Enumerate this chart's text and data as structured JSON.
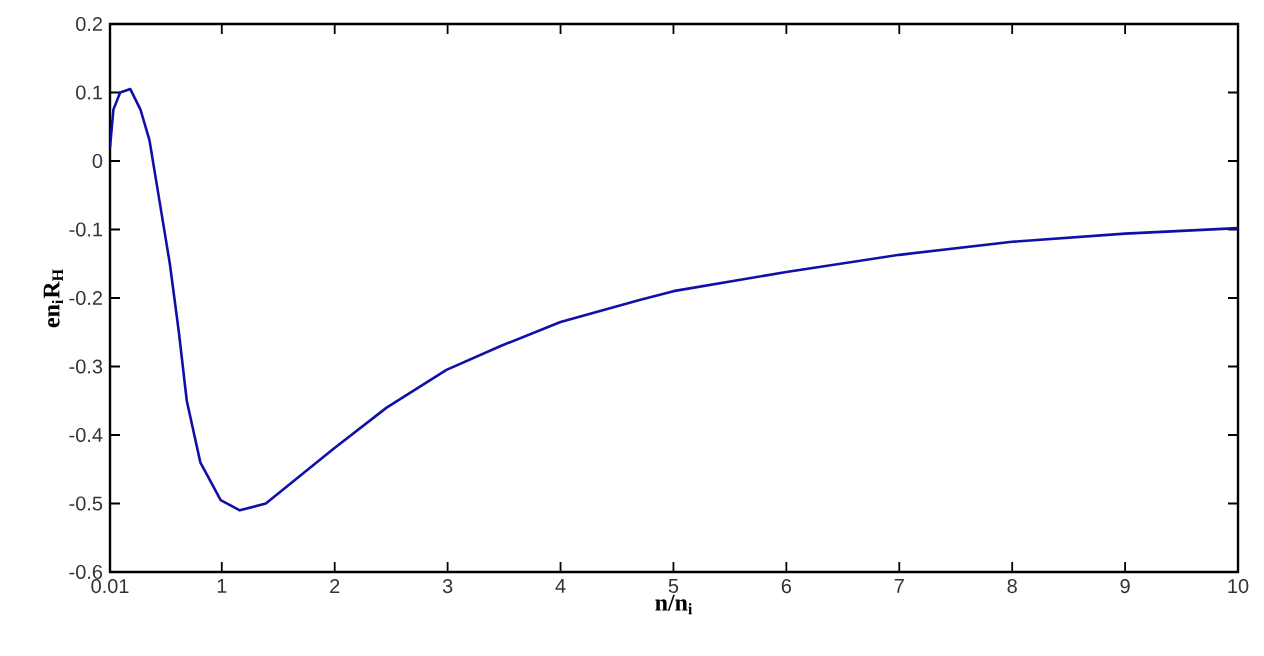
{
  "chart_data": {
    "type": "line",
    "xlabel": "**n/n$_{i}$**",
    "ylabel": "**en$_{i}$R$_{H}$**",
    "x": [
      0.01,
      0.04,
      0.1,
      0.19,
      0.28,
      0.36,
      0.45,
      0.54,
      0.62,
      0.69,
      0.81,
      0.99,
      1.16,
      1.39,
      1.69,
      1.99,
      2.46,
      2.99,
      3.47,
      4.0,
      4.7,
      5.0,
      6.0,
      7.0,
      8.0,
      9.0,
      10.0
    ],
    "series": [
      {
        "color": "#1010a8",
        "values": [
          0.02,
          0.075,
          0.1,
          0.105,
          0.075,
          0.03,
          -0.06,
          -0.15,
          -0.25,
          -0.35,
          -0.44,
          -0.495,
          -0.51,
          -0.5,
          -0.46,
          -0.42,
          -0.36,
          -0.305,
          -0.27,
          -0.235,
          -0.203,
          -0.19,
          -0.162,
          -0.137,
          -0.118,
          -0.106,
          -0.098
        ]
      }
    ],
    "xlim": [
      0.01,
      10
    ],
    "ylim": [
      -0.6,
      0.2
    ],
    "xticks": [
      0.01,
      1,
      2,
      3,
      4,
      5,
      6,
      7,
      8,
      9,
      10
    ],
    "yticks": [
      -0.6,
      -0.5,
      -0.4,
      -0.3,
      -0.2,
      -0.1,
      0,
      0.1,
      0.2
    ]
  }
}
